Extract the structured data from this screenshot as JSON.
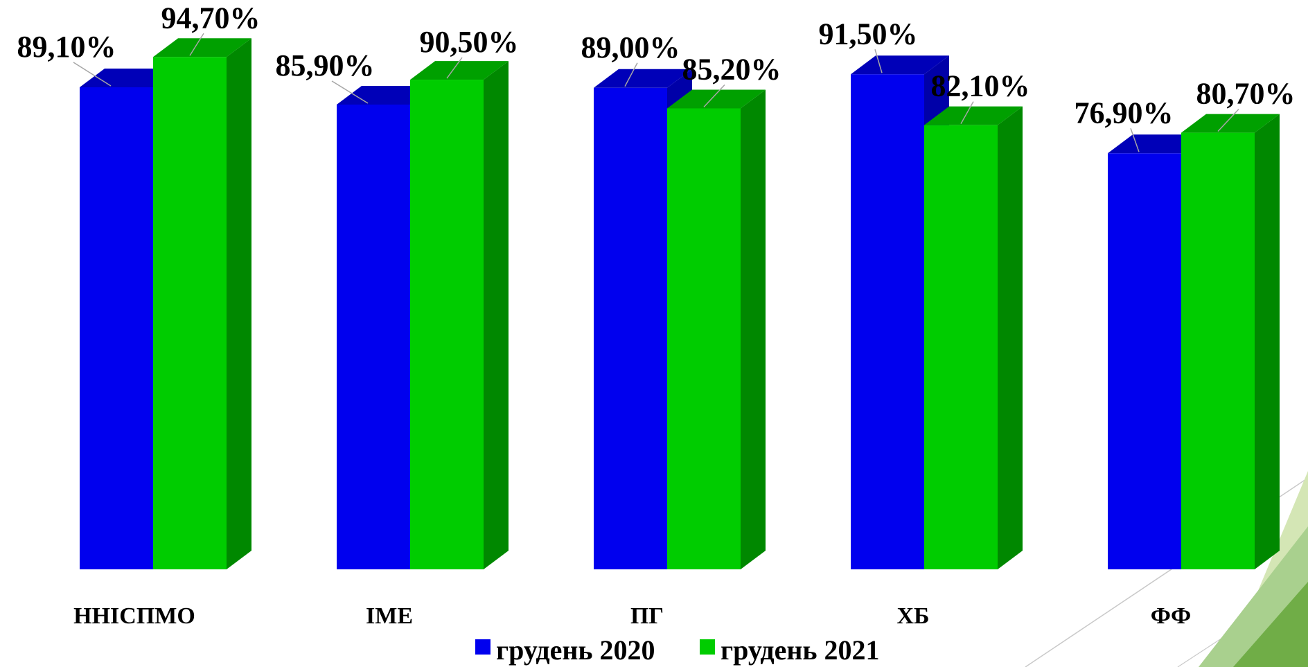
{
  "chart_data": {
    "type": "bar",
    "three_d": true,
    "categories": [
      "ННІСПМО",
      "ІМЕ",
      "ПГ",
      "ХБ",
      "ФФ"
    ],
    "series": [
      {
        "name": "грудень 2020",
        "values": [
          89.1,
          85.9,
          89.0,
          91.5,
          76.9
        ],
        "labels": [
          "89,10%",
          "85,90%",
          "89,00%",
          "91,50%",
          "76,90%"
        ],
        "color": "#0000ee",
        "top_color": "#0000b8",
        "side_color": "#0000a8"
      },
      {
        "name": "грудень 2021",
        "values": [
          94.7,
          90.5,
          85.2,
          82.1,
          80.7
        ],
        "labels": [
          "94,70%",
          "90,50%",
          "85,20%",
          "82,10%",
          "80,70%"
        ],
        "color": "#00cc00",
        "top_color": "#00a000",
        "side_color": "#008800"
      }
    ],
    "ylim": [
      0,
      100
    ],
    "grid": false,
    "legend": "bottom",
    "title": "",
    "xlabel": "",
    "ylabel": ""
  },
  "decoration": {
    "accent_light": "#d4e6b5",
    "accent_mid": "#a9d08e",
    "accent_dark": "#70ad47",
    "line_color": "#c9c9c9"
  }
}
